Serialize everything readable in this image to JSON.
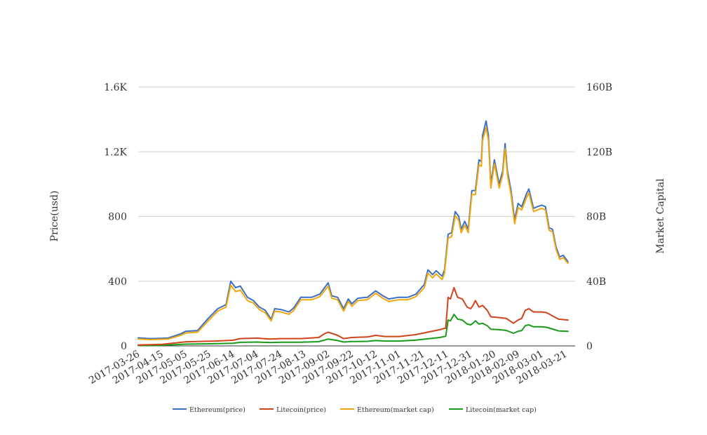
{
  "chart_data": {
    "type": "line",
    "title": "",
    "xlabel": "",
    "ylabel_left": "Price(usd)",
    "ylabel_right": "Market Capital",
    "x_start": "2017-03-26",
    "x_end": "2018-03-29",
    "x_tick_labels": [
      "2017-03-26",
      "2017-04-15",
      "2017-05-05",
      "2017-05-25",
      "2017-06-14",
      "2017-07-04",
      "2017-07-24",
      "2017-08-13",
      "2017-09-02",
      "2017-09-22",
      "2017-10-12",
      "2017-11-01",
      "2017-11-21",
      "2017-12-11",
      "2017-12-31",
      "2018-01-20",
      "2018-02-09",
      "2018-03-01",
      "2018-03-21"
    ],
    "y_left": {
      "min": 0,
      "max": 1600,
      "ticks": [
        0,
        400,
        800,
        1200,
        1600
      ],
      "tick_labels": [
        "0",
        "400",
        "800",
        "1.2K",
        "1.6K"
      ]
    },
    "y_right": {
      "min": 0,
      "max": 160,
      "unit": "B",
      "ticks": [
        0,
        40,
        80,
        120,
        160
      ],
      "tick_labels": [
        "0",
        "40B",
        "80B",
        "120B",
        "160B"
      ]
    },
    "grid": true,
    "legend_position": "bottom",
    "series": [
      {
        "name": "Ethereum(price)",
        "axis": "left",
        "color": "#3a6fc4",
        "points": [
          [
            "2017-03-26",
            50
          ],
          [
            "2017-04-05",
            45
          ],
          [
            "2017-04-20",
            48
          ],
          [
            "2017-05-01",
            75
          ],
          [
            "2017-05-05",
            90
          ],
          [
            "2017-05-15",
            95
          ],
          [
            "2017-05-24",
            170
          ],
          [
            "2017-06-01",
            230
          ],
          [
            "2017-06-08",
            255
          ],
          [
            "2017-06-12",
            400
          ],
          [
            "2017-06-16",
            360
          ],
          [
            "2017-06-20",
            370
          ],
          [
            "2017-06-26",
            300
          ],
          [
            "2017-07-01",
            280
          ],
          [
            "2017-07-06",
            240
          ],
          [
            "2017-07-11",
            220
          ],
          [
            "2017-07-16",
            165
          ],
          [
            "2017-07-19",
            230
          ],
          [
            "2017-07-24",
            225
          ],
          [
            "2017-07-31",
            210
          ],
          [
            "2017-08-04",
            235
          ],
          [
            "2017-08-10",
            300
          ],
          [
            "2017-08-19",
            300
          ],
          [
            "2017-08-26",
            320
          ],
          [
            "2017-09-02",
            390
          ],
          [
            "2017-09-05",
            310
          ],
          [
            "2017-09-10",
            300
          ],
          [
            "2017-09-15",
            230
          ],
          [
            "2017-09-19",
            290
          ],
          [
            "2017-09-22",
            260
          ],
          [
            "2017-09-27",
            295
          ],
          [
            "2017-10-05",
            300
          ],
          [
            "2017-10-12",
            340
          ],
          [
            "2017-10-18",
            310
          ],
          [
            "2017-10-23",
            290
          ],
          [
            "2017-10-31",
            300
          ],
          [
            "2017-11-08",
            300
          ],
          [
            "2017-11-15",
            320
          ],
          [
            "2017-11-22",
            380
          ],
          [
            "2017-11-25",
            470
          ],
          [
            "2017-11-29",
            440
          ],
          [
            "2017-12-02",
            465
          ],
          [
            "2017-12-07",
            430
          ],
          [
            "2017-12-09",
            470
          ],
          [
            "2017-12-12",
            690
          ],
          [
            "2017-12-15",
            700
          ],
          [
            "2017-12-18",
            830
          ],
          [
            "2017-12-21",
            800
          ],
          [
            "2017-12-23",
            720
          ],
          [
            "2017-12-26",
            770
          ],
          [
            "2017-12-29",
            720
          ],
          [
            "2018-01-01",
            960
          ],
          [
            "2018-01-04",
            960
          ],
          [
            "2018-01-07",
            1150
          ],
          [
            "2018-01-09",
            1140
          ],
          [
            "2018-01-10",
            1300
          ],
          [
            "2018-01-13",
            1390
          ],
          [
            "2018-01-15",
            1300
          ],
          [
            "2018-01-17",
            1000
          ],
          [
            "2018-01-20",
            1150
          ],
          [
            "2018-01-24",
            1000
          ],
          [
            "2018-01-27",
            1080
          ],
          [
            "2018-01-29",
            1250
          ],
          [
            "2018-01-31",
            1080
          ],
          [
            "2018-02-03",
            960
          ],
          [
            "2018-02-06",
            780
          ],
          [
            "2018-02-09",
            880
          ],
          [
            "2018-02-12",
            860
          ],
          [
            "2018-02-16",
            940
          ],
          [
            "2018-02-18",
            970
          ],
          [
            "2018-02-22",
            850
          ],
          [
            "2018-02-25",
            860
          ],
          [
            "2018-03-01",
            870
          ],
          [
            "2018-03-04",
            860
          ],
          [
            "2018-03-07",
            730
          ],
          [
            "2018-03-10",
            720
          ],
          [
            "2018-03-13",
            610
          ],
          [
            "2018-03-16",
            550
          ],
          [
            "2018-03-19",
            560
          ],
          [
            "2018-03-23",
            520
          ]
        ]
      },
      {
        "name": "Litecoin(price)",
        "axis": "left",
        "color": "#d0431b",
        "points": [
          [
            "2017-03-26",
            5
          ],
          [
            "2017-04-15",
            10
          ],
          [
            "2017-05-05",
            25
          ],
          [
            "2017-05-20",
            28
          ],
          [
            "2017-05-30",
            30
          ],
          [
            "2017-06-14",
            35
          ],
          [
            "2017-06-20",
            45
          ],
          [
            "2017-07-04",
            48
          ],
          [
            "2017-07-15",
            42
          ],
          [
            "2017-07-24",
            45
          ],
          [
            "2017-08-10",
            45
          ],
          [
            "2017-08-25",
            52
          ],
          [
            "2017-08-30",
            75
          ],
          [
            "2017-09-02",
            85
          ],
          [
            "2017-09-10",
            65
          ],
          [
            "2017-09-15",
            45
          ],
          [
            "2017-09-22",
            52
          ],
          [
            "2017-10-05",
            55
          ],
          [
            "2017-10-12",
            65
          ],
          [
            "2017-10-20",
            58
          ],
          [
            "2017-11-01",
            58
          ],
          [
            "2017-11-15",
            70
          ],
          [
            "2017-11-25",
            85
          ],
          [
            "2017-12-05",
            100
          ],
          [
            "2017-12-10",
            110
          ],
          [
            "2017-12-12",
            300
          ],
          [
            "2017-12-14",
            290
          ],
          [
            "2017-12-17",
            360
          ],
          [
            "2017-12-20",
            300
          ],
          [
            "2017-12-24",
            290
          ],
          [
            "2017-12-28",
            240
          ],
          [
            "2017-12-31",
            230
          ],
          [
            "2018-01-02",
            250
          ],
          [
            "2018-01-04",
            280
          ],
          [
            "2018-01-07",
            240
          ],
          [
            "2018-01-10",
            250
          ],
          [
            "2018-01-14",
            220
          ],
          [
            "2018-01-17",
            180
          ],
          [
            "2018-01-24",
            175
          ],
          [
            "2018-01-30",
            170
          ],
          [
            "2018-02-05",
            140
          ],
          [
            "2018-02-09",
            160
          ],
          [
            "2018-02-12",
            170
          ],
          [
            "2018-02-15",
            220
          ],
          [
            "2018-02-18",
            230
          ],
          [
            "2018-02-22",
            210
          ],
          [
            "2018-03-01",
            210
          ],
          [
            "2018-03-05",
            205
          ],
          [
            "2018-03-10",
            185
          ],
          [
            "2018-03-15",
            165
          ],
          [
            "2018-03-23",
            160
          ]
        ]
      },
      {
        "name": "Ethereum(market cap)",
        "axis": "right",
        "color": "#f2a60d",
        "points": [
          [
            "2017-03-26",
            4.3
          ],
          [
            "2017-04-05",
            3.9
          ],
          [
            "2017-04-20",
            4.2
          ],
          [
            "2017-05-01",
            6.6
          ],
          [
            "2017-05-05",
            8
          ],
          [
            "2017-05-15",
            8.5
          ],
          [
            "2017-05-24",
            15.5
          ],
          [
            "2017-06-01",
            21.5
          ],
          [
            "2017-06-08",
            24
          ],
          [
            "2017-06-12",
            37.5
          ],
          [
            "2017-06-16",
            33.5
          ],
          [
            "2017-06-20",
            34.5
          ],
          [
            "2017-06-26",
            28
          ],
          [
            "2017-07-01",
            26.5
          ],
          [
            "2017-07-06",
            22.5
          ],
          [
            "2017-07-11",
            20.5
          ],
          [
            "2017-07-16",
            15.5
          ],
          [
            "2017-07-19",
            21.5
          ],
          [
            "2017-07-24",
            21
          ],
          [
            "2017-07-31",
            19.5
          ],
          [
            "2017-08-04",
            22
          ],
          [
            "2017-08-10",
            28.5
          ],
          [
            "2017-08-19",
            28.5
          ],
          [
            "2017-08-26",
            30.5
          ],
          [
            "2017-09-02",
            37
          ],
          [
            "2017-09-05",
            29.5
          ],
          [
            "2017-09-10",
            28.5
          ],
          [
            "2017-09-15",
            21.5
          ],
          [
            "2017-09-19",
            27.5
          ],
          [
            "2017-09-22",
            24.5
          ],
          [
            "2017-09-27",
            28
          ],
          [
            "2017-10-05",
            28.5
          ],
          [
            "2017-10-12",
            32.5
          ],
          [
            "2017-10-18",
            29.5
          ],
          [
            "2017-10-23",
            27.5
          ],
          [
            "2017-10-31",
            28.5
          ],
          [
            "2017-11-08",
            28.5
          ],
          [
            "2017-11-15",
            30.5
          ],
          [
            "2017-11-22",
            36
          ],
          [
            "2017-11-25",
            45
          ],
          [
            "2017-11-29",
            42
          ],
          [
            "2017-12-02",
            44.5
          ],
          [
            "2017-12-07",
            41
          ],
          [
            "2017-12-09",
            45
          ],
          [
            "2017-12-12",
            66.5
          ],
          [
            "2017-12-15",
            67.5
          ],
          [
            "2017-12-18",
            80.5
          ],
          [
            "2017-12-21",
            77.5
          ],
          [
            "2017-12-23",
            70
          ],
          [
            "2017-12-26",
            74.5
          ],
          [
            "2017-12-29",
            70
          ],
          [
            "2018-01-01",
            93.5
          ],
          [
            "2018-01-04",
            93.5
          ],
          [
            "2018-01-07",
            112
          ],
          [
            "2018-01-09",
            111
          ],
          [
            "2018-01-10",
            127
          ],
          [
            "2018-01-13",
            135
          ],
          [
            "2018-01-15",
            127
          ],
          [
            "2018-01-17",
            97.5
          ],
          [
            "2018-01-20",
            112.5
          ],
          [
            "2018-01-24",
            97.5
          ],
          [
            "2018-01-27",
            105.5
          ],
          [
            "2018-01-29",
            122
          ],
          [
            "2018-01-31",
            105.5
          ],
          [
            "2018-02-03",
            93.5
          ],
          [
            "2018-02-06",
            75.5
          ],
          [
            "2018-02-09",
            85.5
          ],
          [
            "2018-02-12",
            84
          ],
          [
            "2018-02-16",
            91.5
          ],
          [
            "2018-02-18",
            94.5
          ],
          [
            "2018-02-22",
            83
          ],
          [
            "2018-02-25",
            84
          ],
          [
            "2018-03-01",
            85
          ],
          [
            "2018-03-04",
            84
          ],
          [
            "2018-03-07",
            71.5
          ],
          [
            "2018-03-10",
            70.5
          ],
          [
            "2018-03-13",
            59.5
          ],
          [
            "2018-03-16",
            53.5
          ],
          [
            "2018-03-19",
            54.5
          ],
          [
            "2018-03-23",
            51
          ]
        ]
      },
      {
        "name": "Litecoin(market cap)",
        "axis": "right",
        "color": "#1a9a1a",
        "points": [
          [
            "2017-03-26",
            0.2
          ],
          [
            "2017-04-15",
            0.4
          ],
          [
            "2017-05-05",
            1.1
          ],
          [
            "2017-05-25",
            1.3
          ],
          [
            "2017-06-14",
            1.6
          ],
          [
            "2017-06-20",
            2.2
          ],
          [
            "2017-07-04",
            2.4
          ],
          [
            "2017-07-15",
            2.1
          ],
          [
            "2017-07-24",
            2.3
          ],
          [
            "2017-08-10",
            2.3
          ],
          [
            "2017-08-25",
            2.6
          ],
          [
            "2017-08-30",
            3.6
          ],
          [
            "2017-09-02",
            4.2
          ],
          [
            "2017-09-10",
            3.3
          ],
          [
            "2017-09-15",
            2.4
          ],
          [
            "2017-09-22",
            2.7
          ],
          [
            "2017-10-05",
            2.8
          ],
          [
            "2017-10-12",
            3.3
          ],
          [
            "2017-10-20",
            3
          ],
          [
            "2017-11-01",
            3
          ],
          [
            "2017-11-15",
            3.6
          ],
          [
            "2017-11-25",
            4.4
          ],
          [
            "2017-12-05",
            5.2
          ],
          [
            "2017-12-10",
            6
          ],
          [
            "2017-12-12",
            16
          ],
          [
            "2017-12-14",
            15.5
          ],
          [
            "2017-12-17",
            19.5
          ],
          [
            "2017-12-20",
            16.5
          ],
          [
            "2017-12-24",
            16
          ],
          [
            "2017-12-28",
            13.5
          ],
          [
            "2017-12-31",
            13
          ],
          [
            "2018-01-02",
            14
          ],
          [
            "2018-01-04",
            15.5
          ],
          [
            "2018-01-07",
            13.5
          ],
          [
            "2018-01-10",
            14
          ],
          [
            "2018-01-14",
            12.5
          ],
          [
            "2018-01-17",
            10.3
          ],
          [
            "2018-01-24",
            10
          ],
          [
            "2018-01-30",
            9.6
          ],
          [
            "2018-02-05",
            7.8
          ],
          [
            "2018-02-09",
            9
          ],
          [
            "2018-02-12",
            9.5
          ],
          [
            "2018-02-15",
            12.5
          ],
          [
            "2018-02-18",
            13
          ],
          [
            "2018-02-22",
            11.8
          ],
          [
            "2018-03-01",
            11.8
          ],
          [
            "2018-03-05",
            11.5
          ],
          [
            "2018-03-10",
            10.4
          ],
          [
            "2018-03-15",
            9.3
          ],
          [
            "2018-03-23",
            9
          ]
        ]
      }
    ]
  }
}
